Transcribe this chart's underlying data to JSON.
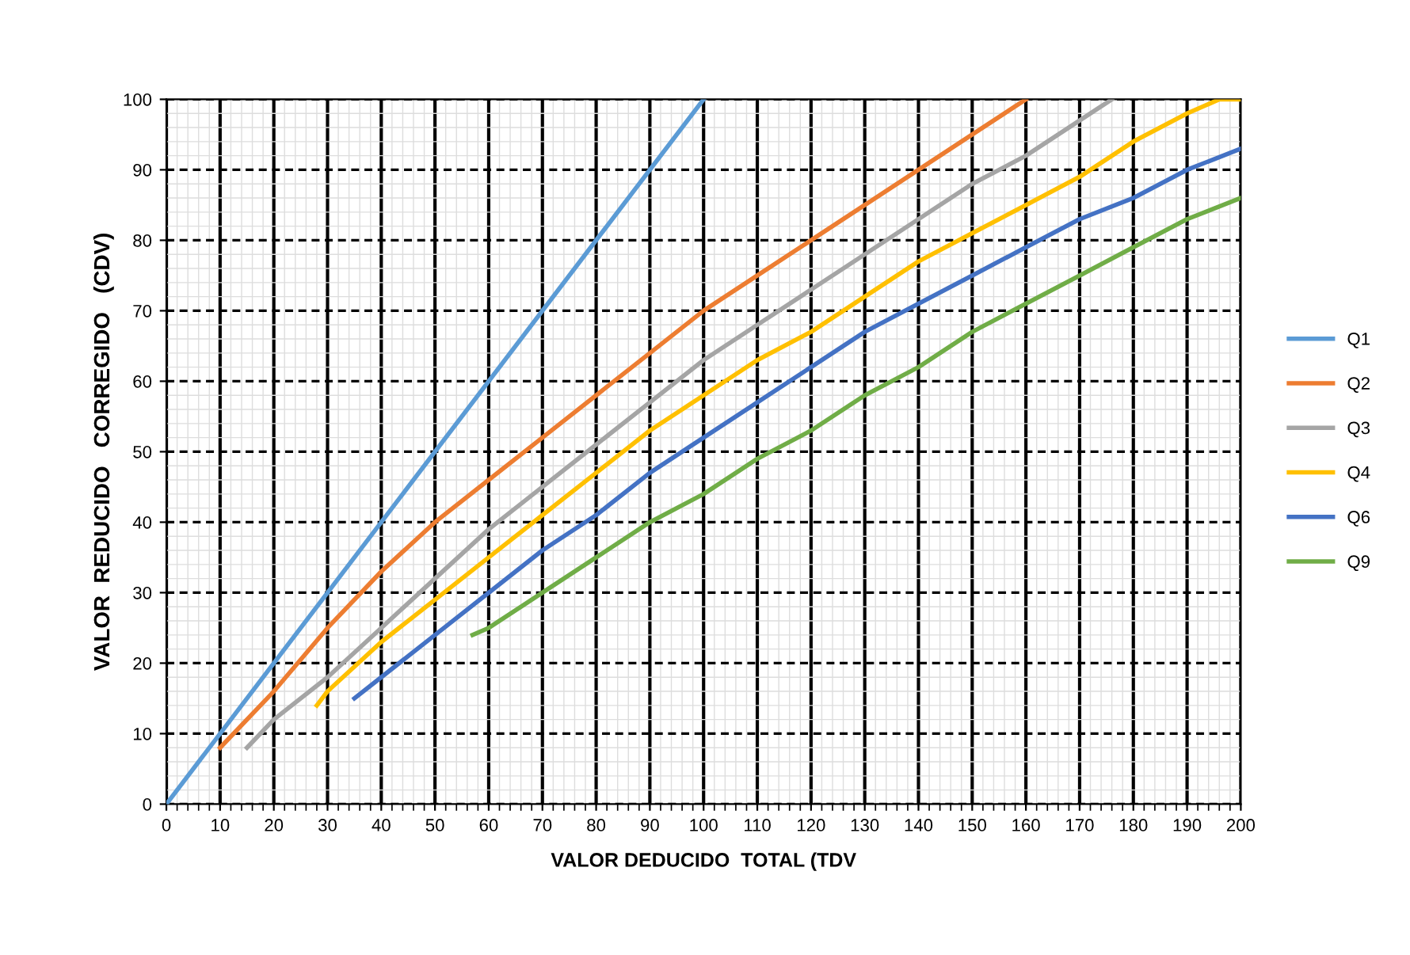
{
  "chart_data": {
    "type": "line",
    "xlabel": "VALOR DEDUCIDO  TOTAL (TDV",
    "ylabel": "VALOR  REDUCIDO   CORREGIDO   (CDV)",
    "xlim": [
      0,
      200
    ],
    "ylim": [
      0,
      100
    ],
    "xticks": [
      0,
      10,
      20,
      30,
      40,
      50,
      60,
      70,
      80,
      90,
      100,
      110,
      120,
      130,
      140,
      150,
      160,
      170,
      180,
      190,
      200
    ],
    "yticks": [
      0,
      10,
      20,
      30,
      40,
      50,
      60,
      70,
      80,
      90,
      100
    ],
    "grid": true,
    "legend": "right",
    "marker": "none",
    "line_style": "solid",
    "series": [
      {
        "name": "Q1",
        "color": "#5b9bd5",
        "x": [
          0,
          100
        ],
        "values": [
          0,
          100
        ]
      },
      {
        "name": "Q2",
        "color": "#ed7d31",
        "x": [
          10,
          20,
          30,
          40,
          50,
          60,
          70,
          80,
          90,
          100,
          110,
          120,
          130,
          140,
          150,
          160
        ],
        "values": [
          8,
          16,
          25,
          33,
          40,
          46,
          52,
          58,
          64,
          70,
          75,
          80,
          85,
          90,
          95,
          100
        ]
      },
      {
        "name": "Q3",
        "color": "#a5a5a5",
        "x": [
          15,
          20,
          30,
          40,
          50,
          60,
          70,
          80,
          90,
          100,
          110,
          120,
          130,
          140,
          150,
          160,
          170,
          176
        ],
        "values": [
          8,
          12,
          18,
          25,
          32,
          39,
          45,
          51,
          57,
          63,
          68,
          73,
          78,
          83,
          88,
          92,
          97,
          100
        ]
      },
      {
        "name": "Q4",
        "color": "#ffc000",
        "x": [
          28,
          30,
          40,
          50,
          60,
          70,
          80,
          90,
          100,
          110,
          120,
          130,
          140,
          150,
          160,
          170,
          180,
          190,
          196,
          200
        ],
        "values": [
          14,
          16,
          23,
          29,
          35,
          41,
          47,
          53,
          58,
          63,
          67,
          72,
          77,
          81,
          85,
          89,
          94,
          98,
          100,
          100
        ]
      },
      {
        "name": "Q6",
        "color": "#4472c4",
        "x": [
          35,
          40,
          50,
          60,
          70,
          80,
          90,
          100,
          110,
          120,
          130,
          140,
          150,
          160,
          170,
          180,
          190,
          200
        ],
        "values": [
          15,
          18,
          24,
          30,
          36,
          41,
          47,
          52,
          57,
          62,
          67,
          71,
          75,
          79,
          83,
          86,
          90,
          93
        ]
      },
      {
        "name": "Q9",
        "color": "#70ad47",
        "x": [
          57,
          60,
          70,
          80,
          90,
          100,
          110,
          120,
          130,
          140,
          150,
          160,
          170,
          180,
          190,
          200
        ],
        "values": [
          24,
          25,
          30,
          35,
          40,
          44,
          49,
          53,
          58,
          62,
          67,
          71,
          75,
          79,
          83,
          86
        ]
      }
    ]
  }
}
